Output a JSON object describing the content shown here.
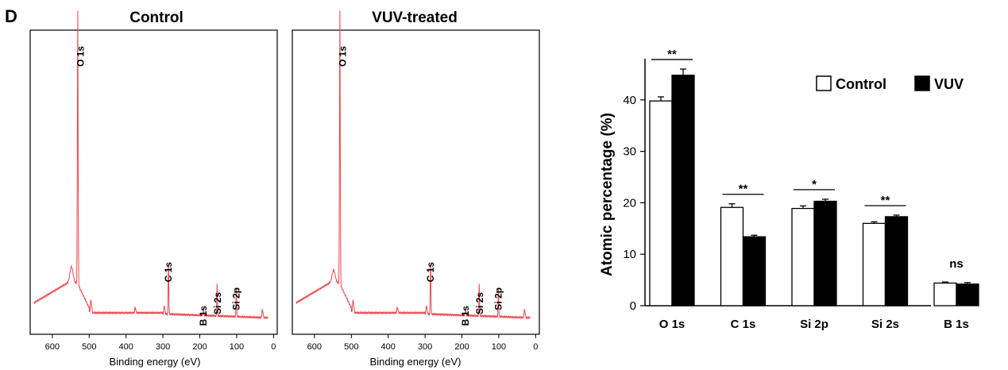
{
  "panel_label": "D",
  "spectra": [
    {
      "title": "Control",
      "xlabel": "Binding energy (eV)",
      "xticks": [
        600,
        500,
        400,
        300,
        200,
        100,
        0
      ],
      "xlim": [
        660,
        -10
      ],
      "line_color": "#e8484e",
      "peak_labels": [
        "O 1s",
        "C 1s",
        "B 1s",
        "Si 2s",
        "Si 2p"
      ]
    },
    {
      "title": "VUV-treated",
      "xlabel": "Binding energy (eV)",
      "xticks": [
        600,
        500,
        400,
        300,
        200,
        100,
        0
      ],
      "xlim": [
        660,
        -10
      ],
      "line_color": "#e8484e",
      "peak_labels": [
        "O 1s",
        "C 1s",
        "B 1s",
        "Si 2s",
        "Si 2p"
      ]
    }
  ],
  "chart_data": {
    "type": "bar",
    "categories": [
      "O 1s",
      "C 1s",
      "Si 2p",
      "Si 2s",
      "B 1s"
    ],
    "series": [
      {
        "name": "Control",
        "values": [
          39.8,
          19.1,
          18.9,
          16.0,
          4.4
        ],
        "errors": [
          0.8,
          0.7,
          0.5,
          0.3,
          0.2
        ],
        "color": "#ffffff"
      },
      {
        "name": "VUV",
        "values": [
          44.8,
          13.4,
          20.3,
          17.3,
          4.2
        ],
        "errors": [
          1.2,
          0.3,
          0.4,
          0.3,
          0.3
        ],
        "color": "#000000"
      }
    ],
    "ylabel": "Atomic percentage (%)",
    "yticks": [
      0,
      10,
      20,
      30,
      40
    ],
    "ylim": [
      0,
      48
    ],
    "significance": [
      "**",
      "**",
      "*",
      "**",
      "ns"
    ],
    "legend_position": "top-right"
  }
}
